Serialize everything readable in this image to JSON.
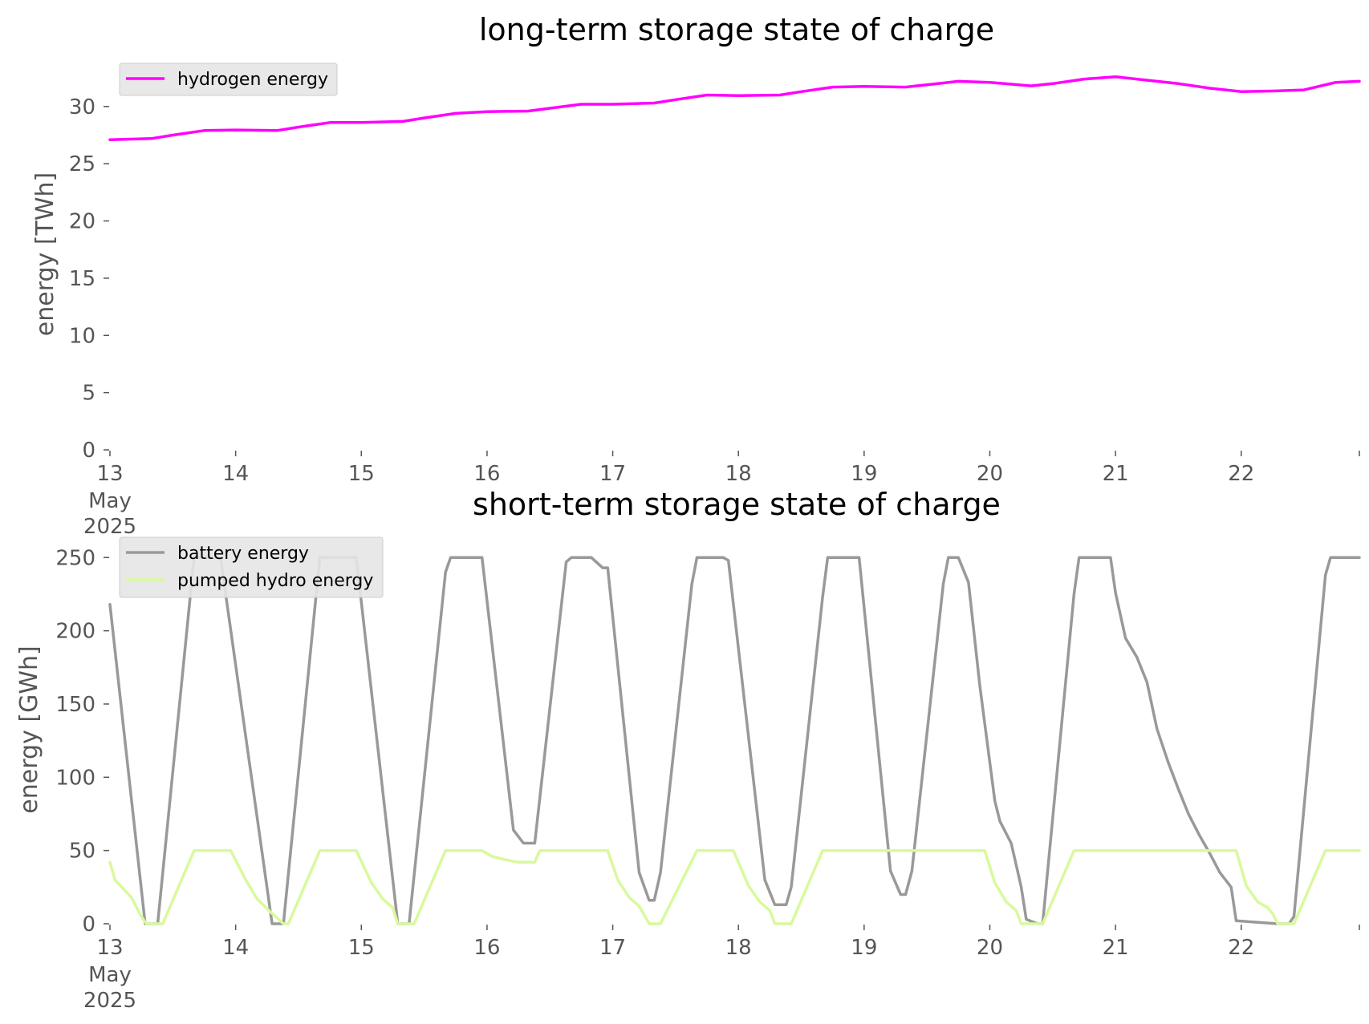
{
  "chart_data": [
    {
      "type": "line",
      "title": "long-term storage state of charge",
      "xlabel": "",
      "ylabel": "energy [TWh]",
      "x_unit": "day of May 2025",
      "xlim": [
        13,
        22.94
      ],
      "ylim": [
        0,
        33
      ],
      "x_ticks": [
        {
          "value": 13,
          "label": "13",
          "sub1": "May",
          "sub2": "2025"
        },
        {
          "value": 14,
          "label": "14"
        },
        {
          "value": 15,
          "label": "15"
        },
        {
          "value": 16,
          "label": "16"
        },
        {
          "value": 17,
          "label": "17"
        },
        {
          "value": 18,
          "label": "18"
        },
        {
          "value": 19,
          "label": "19"
        },
        {
          "value": 20,
          "label": "20"
        },
        {
          "value": 21,
          "label": "21"
        },
        {
          "value": 22,
          "label": "22"
        }
      ],
      "y_ticks": [
        0,
        5,
        10,
        15,
        20,
        25,
        30
      ],
      "grid": false,
      "legend_position": "top-left",
      "series": [
        {
          "name": "hydrogen energy",
          "color": "#ff00ff",
          "x": [
            13.0,
            13.33,
            13.5,
            13.75,
            14.0,
            14.33,
            14.5,
            14.75,
            15.0,
            15.33,
            15.5,
            15.75,
            16.0,
            16.33,
            16.5,
            16.75,
            17.0,
            17.33,
            17.5,
            17.75,
            18.0,
            18.33,
            18.5,
            18.75,
            19.0,
            19.33,
            19.5,
            19.75,
            20.0,
            20.33,
            20.5,
            20.75,
            21.0,
            21.33,
            21.5,
            21.75,
            22.0,
            22.25,
            22.5,
            22.75,
            22.94
          ],
          "y": [
            27.1,
            27.2,
            27.5,
            27.9,
            27.95,
            27.9,
            28.2,
            28.6,
            28.6,
            28.7,
            29.0,
            29.4,
            29.55,
            29.6,
            29.85,
            30.2,
            30.2,
            30.3,
            30.6,
            31.0,
            30.95,
            31.0,
            31.3,
            31.7,
            31.75,
            31.7,
            31.9,
            32.2,
            32.1,
            31.8,
            32.0,
            32.4,
            32.6,
            32.2,
            32.0,
            31.6,
            31.3,
            31.35,
            31.45,
            32.1,
            32.2
          ]
        }
      ]
    },
    {
      "type": "line",
      "title": "short-term storage state of charge",
      "xlabel": "",
      "ylabel": "energy [GWh]",
      "x_unit": "day of May 2025",
      "xlim": [
        13,
        22.94
      ],
      "ylim": [
        0,
        260
      ],
      "x_ticks": [
        {
          "value": 13,
          "label": "13",
          "sub1": "May",
          "sub2": "2025"
        },
        {
          "value": 14,
          "label": "14"
        },
        {
          "value": 15,
          "label": "15"
        },
        {
          "value": 16,
          "label": "16"
        },
        {
          "value": 17,
          "label": "17"
        },
        {
          "value": 18,
          "label": "18"
        },
        {
          "value": 19,
          "label": "19"
        },
        {
          "value": 20,
          "label": "20"
        },
        {
          "value": 21,
          "label": "21"
        },
        {
          "value": 22,
          "label": "22"
        }
      ],
      "y_ticks": [
        0,
        50,
        100,
        150,
        200,
        250
      ],
      "grid": false,
      "legend_position": "top-left",
      "series": [
        {
          "name": "battery energy",
          "color": "#999999",
          "x": [
            13.0,
            13.28,
            13.38,
            13.67,
            13.88,
            14.29,
            14.38,
            14.67,
            14.96,
            15.29,
            15.38,
            15.67,
            15.71,
            15.96,
            16.21,
            16.29,
            16.38,
            16.63,
            16.67,
            16.83,
            16.92,
            16.96,
            17.21,
            17.29,
            17.33,
            17.38,
            17.63,
            17.67,
            17.88,
            17.92,
            18.21,
            18.29,
            18.38,
            18.42,
            18.67,
            18.71,
            18.96,
            19.21,
            19.29,
            19.33,
            19.38,
            19.63,
            19.67,
            19.75,
            19.83,
            19.92,
            20.0,
            20.04,
            20.08,
            20.17,
            20.21,
            20.25,
            20.29,
            20.38,
            20.42,
            20.67,
            20.71,
            20.96,
            21.0,
            21.08,
            21.17,
            21.25,
            21.33,
            21.42,
            21.5,
            21.58,
            21.67,
            21.75,
            21.83,
            21.92,
            21.96,
            22.29,
            22.38,
            22.42,
            22.67,
            22.71,
            22.94
          ],
          "y": [
            218,
            0,
            0,
            250,
            250,
            0,
            0,
            250,
            250,
            0,
            0,
            240,
            250,
            250,
            64,
            55,
            55,
            247,
            250,
            250,
            243,
            243,
            35,
            16,
            16,
            35,
            232,
            250,
            250,
            248,
            30,
            13,
            13,
            25,
            223,
            250,
            250,
            36,
            20,
            20,
            36,
            232,
            250,
            250,
            233,
            163,
            110,
            84,
            70,
            55,
            40,
            25,
            3,
            0,
            0,
            225,
            250,
            250,
            226,
            195,
            182,
            165,
            133,
            110,
            92,
            75,
            60,
            48,
            35,
            25,
            2,
            0,
            0,
            5,
            238,
            250,
            250
          ]
        },
        {
          "name": "pumped hydro energy",
          "color": "#d9f99d",
          "x": [
            13.0,
            13.04,
            13.17,
            13.25,
            13.29,
            13.42,
            13.67,
            13.96,
            14.08,
            14.17,
            14.29,
            14.38,
            14.42,
            14.67,
            14.96,
            15.08,
            15.17,
            15.25,
            15.29,
            15.42,
            15.67,
            15.75,
            15.96,
            16.04,
            16.13,
            16.25,
            16.38,
            16.42,
            16.96,
            17.04,
            17.13,
            17.21,
            17.29,
            17.38,
            17.67,
            17.96,
            18.08,
            18.17,
            18.25,
            18.29,
            18.42,
            18.67,
            19.96,
            20.04,
            20.13,
            20.21,
            20.25,
            20.42,
            20.67,
            21.96,
            22.04,
            22.13,
            22.21,
            22.25,
            22.29,
            22.42,
            22.67,
            22.94
          ],
          "y": [
            42,
            30,
            18,
            5,
            0,
            0,
            50,
            50,
            30,
            17,
            7,
            0,
            0,
            50,
            50,
            28,
            17,
            11,
            0,
            0,
            50,
            50,
            50,
            46,
            44,
            42,
            42,
            50,
            50,
            30,
            18,
            12,
            0,
            0,
            50,
            50,
            26,
            15,
            9,
            0,
            0,
            50,
            50,
            28,
            15,
            9,
            0,
            0,
            50,
            50,
            26,
            15,
            11,
            7,
            0,
            0,
            50,
            50
          ]
        }
      ]
    }
  ]
}
